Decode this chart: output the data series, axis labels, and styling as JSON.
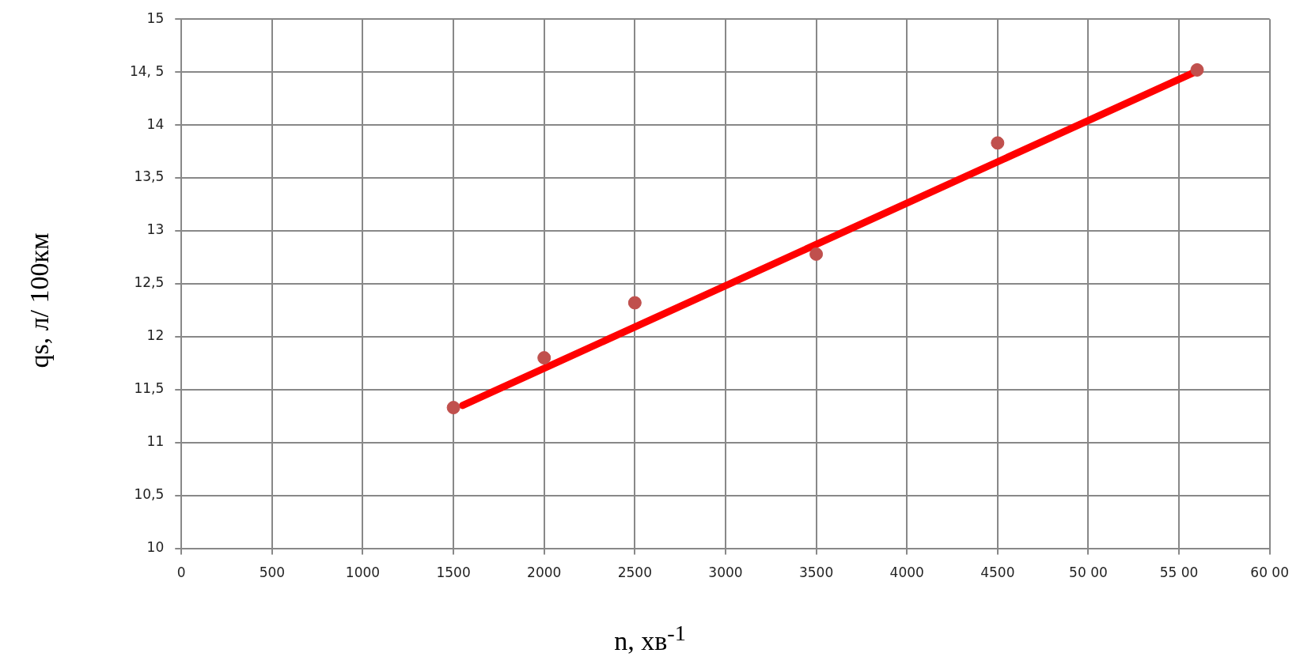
{
  "chart_data": {
    "type": "scatter",
    "xlabel": "n, хв$^{-1}$",
    "ylabel": "qs, л/ 100км",
    "series": [
      {
        "color": "#c0504d",
        "x": [
          1500,
          2000,
          2500,
          3500,
          4500,
          5600
        ],
        "values": [
          11.33,
          11.8,
          12.32,
          12.78,
          13.83,
          14.52
        ],
        "marker": "circle"
      },
      {
        "type": "line",
        "color": "#ff0000",
        "x": [
          1550,
          5600
        ],
        "values": [
          11.35,
          14.51
        ],
        "marker": "none",
        "line_style": "solid"
      }
    ],
    "xlim": [
      0,
      6000
    ],
    "xticks": [
      0,
      500,
      1000,
      1500,
      2000,
      2500,
      3000,
      3500,
      4000,
      4500,
      {
        "value": 5000,
        "label": "50 00"
      },
      {
        "value": 5500,
        "label": "55 00"
      },
      {
        "value": 6000,
        "label": "60 00"
      }
    ],
    "ylim": [
      10,
      15
    ],
    "yticks": [
      10,
      {
        "value": 10.5,
        "label": "10,5"
      },
      11,
      {
        "value": 11.5,
        "label": "11,5"
      },
      12,
      {
        "value": 12.5,
        "label": "12,5"
      },
      13,
      {
        "value": 13.5,
        "label": "13,5"
      },
      14,
      {
        "value": 14.5,
        "label": "14, 5"
      },
      15
    ],
    "grid": true,
    "legend": false
  }
}
